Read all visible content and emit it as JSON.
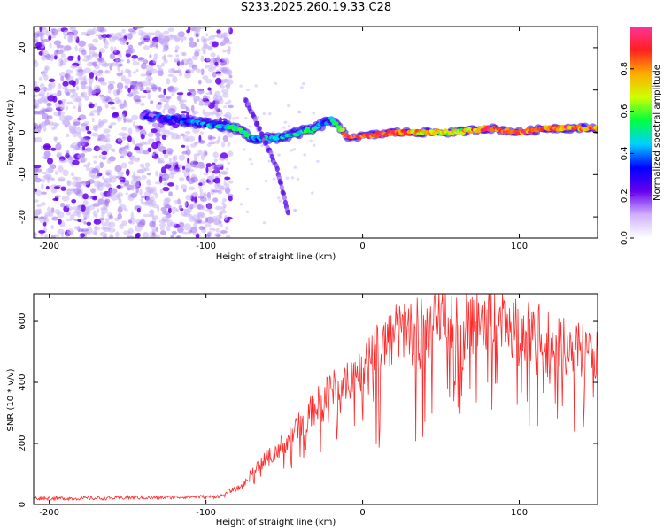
{
  "title": "S233.2025.260.19.33.C28",
  "colors": {
    "signal": "#ff2a2a",
    "scatter": "#6600ee",
    "scatter_light": "#c9b3f5"
  },
  "chart_data": [
    {
      "type": "heatmap",
      "name": "spectrogram",
      "xlabel": "Height of straight line (km)",
      "ylabel": "Frequency (Hz)",
      "xlim": [
        -210,
        150
      ],
      "ylim": [
        -25,
        25
      ],
      "xticks": [
        -200,
        -100,
        0,
        100
      ],
      "xtick_labels": [
        "-200",
        "-100",
        "0",
        "100"
      ],
      "yticks": [
        -20,
        -10,
        0,
        10,
        20
      ],
      "ytick_labels": [
        "-20",
        "-10",
        "0",
        "10",
        "20"
      ],
      "noise_region_x": [
        -210,
        -88
      ],
      "ridge": {
        "description": "main frequency ridge",
        "x": [
          -140,
          -120,
          -100,
          -90,
          -80,
          -70,
          -60,
          -50,
          -40,
          -30,
          -20,
          -10,
          0,
          20,
          40,
          60,
          80,
          100,
          120,
          150
        ],
        "y": [
          4,
          3,
          2,
          1.5,
          1,
          -1.5,
          -1.5,
          -1,
          0,
          1,
          3,
          -1,
          -1,
          0,
          0,
          0,
          1,
          0,
          1,
          1
        ],
        "amplitude": [
          0.25,
          0.3,
          0.35,
          0.45,
          0.5,
          0.4,
          0.45,
          0.4,
          0.45,
          0.5,
          0.35,
          0.9,
          0.85,
          0.9,
          0.7,
          0.65,
          0.9,
          0.85,
          0.85,
          0.8
        ]
      },
      "branch": {
        "description": "descending secondary branch",
        "x": [
          -75,
          -65,
          -55,
          -47
        ],
        "y": [
          8,
          0,
          -8,
          -20
        ]
      }
    },
    {
      "type": "colorbar",
      "name": "amplitude-colorbar",
      "label": "Normalized spectral amplitude",
      "range": [
        0,
        1
      ],
      "ticks": [
        0.0,
        0.2,
        0.4,
        0.6,
        0.8
      ],
      "tick_labels": [
        "0.0",
        "0.2",
        "0.4",
        "0.6",
        "0.8"
      ],
      "colors": [
        "#ffffff",
        "#d0b0ff",
        "#6600ee",
        "#0000ff",
        "#00d0ff",
        "#00ff40",
        "#d0ff00",
        "#ffaa00",
        "#ff2020",
        "#ff3399"
      ]
    },
    {
      "type": "line",
      "name": "snr",
      "xlabel": "Height of straight line (km)",
      "ylabel": "SNR (10 * v/v)",
      "xlim": [
        -210,
        150
      ],
      "ylim": [
        0,
        690
      ],
      "xticks": [
        -200,
        -100,
        0,
        100
      ],
      "xtick_labels": [
        "-200",
        "-100",
        "0",
        "100"
      ],
      "yticks": [
        0,
        200,
        400,
        600
      ],
      "ytick_labels": [
        "0",
        "200",
        "400",
        "600"
      ],
      "series": [
        {
          "name": "SNR",
          "x": [
            -210,
            -190,
            -170,
            -150,
            -130,
            -110,
            -95,
            -88,
            -85,
            -80,
            -75,
            -70,
            -65,
            -60,
            -55,
            -50,
            -45,
            -40,
            -35,
            -30,
            -25,
            -20,
            -15,
            -10,
            -5,
            0,
            5,
            10,
            15,
            20,
            30,
            40,
            50,
            60,
            70,
            80,
            90,
            100,
            110,
            120,
            130,
            140,
            150
          ],
          "y": [
            20,
            20,
            20,
            22,
            22,
            25,
            25,
            30,
            45,
            50,
            70,
            110,
            130,
            160,
            180,
            200,
            230,
            260,
            290,
            320,
            350,
            370,
            390,
            410,
            430,
            450,
            480,
            510,
            530,
            555,
            580,
            590,
            600,
            600,
            600,
            600,
            590,
            575,
            560,
            550,
            520,
            510,
            495
          ]
        }
      ]
    }
  ]
}
